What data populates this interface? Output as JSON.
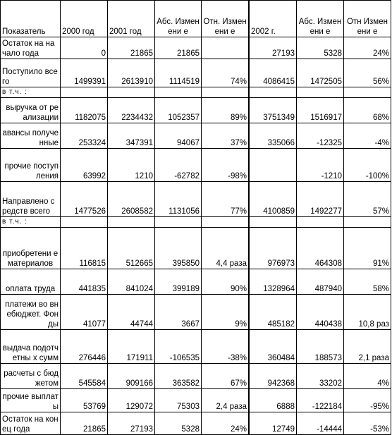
{
  "header": {
    "indicator": "Показатель",
    "y2000": "2000 год",
    "y2001": "2001 год",
    "abs1": "Абс. Изменени е",
    "rel1": "Отн. Изменени е",
    "blank": "",
    "y2002": "2002 г.",
    "abs2": "Абс. Изменени е",
    "rel2": "Отн Изменени е"
  },
  "rows": [
    {
      "label": "Остаток на начало года",
      "align": "left",
      "v2000": "0",
      "v2001": "21865",
      "abs1": "21865",
      "rel1": "",
      "v2002": "27193",
      "abs2": "5328",
      "rel2": "24%"
    },
    {
      "label": "Поступило всего",
      "align": "left",
      "v2000": "1499391",
      "v2001": "2613910",
      "abs1": "1114519",
      "rel1": "74%",
      "v2002": "4086415",
      "abs2": "1472505",
      "rel2": "56%"
    },
    {
      "label": "в т.ч. :",
      "align": "left",
      "small": true,
      "v2000": "",
      "v2001": "",
      "abs1": "",
      "rel1": "",
      "v2002": "",
      "abs2": "",
      "rel2": ""
    },
    {
      "label": "выручка от реализации",
      "align": "right",
      "v2000": "1182075",
      "v2001": "2234432",
      "abs1": "1052357",
      "rel1": "89%",
      "v2002": "3751349",
      "abs2": "1516917",
      "rel2": "68%"
    },
    {
      "label": "авансы полученные",
      "align": "right",
      "v2000": "253324",
      "v2001": "347391",
      "abs1": "94067",
      "rel1": "37%",
      "v2002": "335066",
      "abs2": "-12325",
      "rel2": "-4%"
    },
    {
      "label": "прочие поступления",
      "align": "right",
      "v2000": "63992",
      "v2001": "1210",
      "abs1": "-62782",
      "rel1": "-98%",
      "v2002": "",
      "abs2": "-1210",
      "rel2": "-100%"
    },
    {
      "label": "Направлено средств всего",
      "align": "left",
      "v2000": "1477526",
      "v2001": "2608582",
      "abs1": "1131056",
      "rel1": "77%",
      "v2002": "4100859",
      "abs2": "1492277",
      "rel2": "57%"
    },
    {
      "label": "в т.ч. :",
      "align": "left",
      "small": true,
      "v2000": "",
      "v2001": "",
      "abs1": "",
      "rel1": "",
      "v2002": "",
      "abs2": "",
      "rel2": ""
    },
    {
      "label": "приобретени е материалов",
      "align": "center",
      "v2000": "116815",
      "v2001": "512665",
      "abs1": "395850",
      "rel1": "4,4 раза",
      "v2002": "976973",
      "abs2": "464308",
      "rel2": "91%"
    },
    {
      "label": "оплата труда",
      "align": "center",
      "v2000": "441835",
      "v2001": "841024",
      "abs1": "399189",
      "rel1": "90%",
      "v2002": "1328964",
      "abs2": "487940",
      "rel2": "58%"
    },
    {
      "label": "платежи во внебюджет. Фонды",
      "align": "right",
      "v2000": "41077",
      "v2001": "44744",
      "abs1": "3667",
      "rel1": "9%",
      "v2002": "485182",
      "abs2": "440438",
      "rel2": "10,8 раз"
    },
    {
      "label": "выдача подотчетны х сумм",
      "align": "right",
      "v2000": "276446",
      "v2001": "171911",
      "abs1": "-106535",
      "rel1": "-38%",
      "v2002": "360484",
      "abs2": "188573",
      "rel2": "2,1 раза"
    },
    {
      "label": "расчеты с бюджетом",
      "align": "right",
      "v2000": "545584",
      "v2001": "909166",
      "abs1": "363582",
      "rel1": "67%",
      "v2002": "942368",
      "abs2": "33202",
      "rel2": "4%"
    },
    {
      "label": "прочие выплаты",
      "align": "right",
      "v2000": "53769",
      "v2001": "129072",
      "abs1": "75303",
      "rel1": "2,4 раза",
      "v2002": "6888",
      "abs2": "-122184",
      "rel2": "-95%"
    },
    {
      "label": "Остаток на конец года",
      "align": "left",
      "v2000": "21865",
      "v2001": "27193",
      "abs1": "5328",
      "rel1": "24%",
      "v2002": "12749",
      "abs2": "-14444",
      "rel2": "-53%"
    }
  ]
}
